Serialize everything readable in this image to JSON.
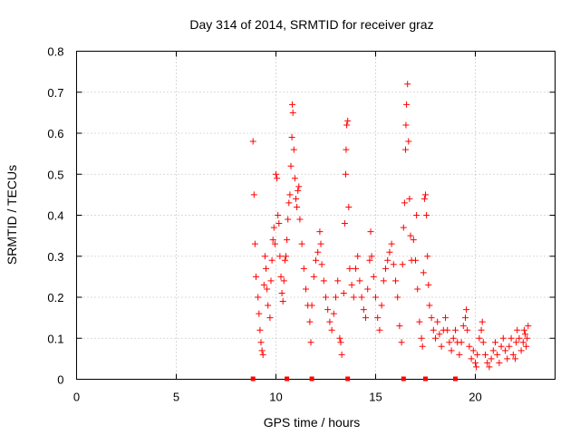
{
  "chart_data": {
    "type": "scatter",
    "title": "Day 314 of 2014, SRMTID for receiver graz",
    "xlabel": "GPS time / hours",
    "ylabel": "SRMTID / TECUs",
    "xlim": [
      0,
      24
    ],
    "ylim": [
      0,
      0.8
    ],
    "xticks": [
      0,
      5,
      10,
      15,
      20
    ],
    "yticks": [
      0,
      0.1,
      0.2,
      0.3,
      0.4,
      0.5,
      0.6,
      0.7,
      0.8
    ],
    "xtick_labels": [
      "0",
      "5",
      "10",
      "15",
      "20"
    ],
    "ytick_labels": [
      "0",
      "0.1",
      "0.2",
      "0.3",
      "0.4",
      "0.5",
      "0.6",
      "0.7",
      "0.8"
    ],
    "grid": true,
    "marker": "+",
    "color": "#ff0000",
    "series": [
      {
        "name": "SRMTID",
        "points": [
          [
            8.85,
            0.58
          ],
          [
            8.9,
            0.45
          ],
          [
            8.95,
            0.33
          ],
          [
            9.0,
            0.25
          ],
          [
            9.1,
            0.2
          ],
          [
            9.15,
            0.16
          ],
          [
            9.2,
            0.12
          ],
          [
            9.25,
            0.09
          ],
          [
            9.3,
            0.07
          ],
          [
            9.35,
            0.06
          ],
          [
            9.4,
            0.23
          ],
          [
            9.45,
            0.3
          ],
          [
            9.5,
            0.27
          ],
          [
            9.55,
            0.22
          ],
          [
            9.6,
            0.18
          ],
          [
            9.7,
            0.15
          ],
          [
            9.75,
            0.24
          ],
          [
            9.8,
            0.29
          ],
          [
            9.85,
            0.34
          ],
          [
            9.9,
            0.37
          ],
          [
            9.95,
            0.33
          ],
          [
            10.0,
            0.5
          ],
          [
            10.05,
            0.49
          ],
          [
            10.1,
            0.4
          ],
          [
            10.15,
            0.38
          ],
          [
            10.2,
            0.3
          ],
          [
            10.25,
            0.25
          ],
          [
            10.3,
            0.21
          ],
          [
            10.35,
            0.19
          ],
          [
            10.4,
            0.24
          ],
          [
            10.45,
            0.29
          ],
          [
            10.5,
            0.3
          ],
          [
            10.55,
            0.34
          ],
          [
            10.6,
            0.39
          ],
          [
            10.65,
            0.43
          ],
          [
            10.7,
            0.45
          ],
          [
            10.75,
            0.52
          ],
          [
            10.8,
            0.59
          ],
          [
            10.82,
            0.67
          ],
          [
            10.85,
            0.65
          ],
          [
            10.9,
            0.56
          ],
          [
            10.95,
            0.49
          ],
          [
            11.0,
            0.44
          ],
          [
            11.05,
            0.42
          ],
          [
            11.1,
            0.46
          ],
          [
            11.15,
            0.47
          ],
          [
            11.2,
            0.39
          ],
          [
            11.3,
            0.33
          ],
          [
            11.4,
            0.27
          ],
          [
            11.5,
            0.22
          ],
          [
            11.6,
            0.18
          ],
          [
            11.7,
            0.14
          ],
          [
            11.75,
            0.09
          ],
          [
            11.8,
            0.18
          ],
          [
            11.9,
            0.25
          ],
          [
            12.0,
            0.29
          ],
          [
            12.1,
            0.31
          ],
          [
            12.2,
            0.36
          ],
          [
            12.25,
            0.33
          ],
          [
            12.3,
            0.28
          ],
          [
            12.4,
            0.24
          ],
          [
            12.5,
            0.2
          ],
          [
            12.6,
            0.17
          ],
          [
            12.7,
            0.14
          ],
          [
            12.8,
            0.12
          ],
          [
            12.9,
            0.16
          ],
          [
            13.0,
            0.2
          ],
          [
            13.1,
            0.24
          ],
          [
            13.2,
            0.1
          ],
          [
            13.25,
            0.09
          ],
          [
            13.3,
            0.06
          ],
          [
            13.4,
            0.21
          ],
          [
            13.45,
            0.38
          ],
          [
            13.5,
            0.5
          ],
          [
            13.52,
            0.56
          ],
          [
            13.55,
            0.62
          ],
          [
            13.6,
            0.63
          ],
          [
            13.65,
            0.42
          ],
          [
            13.7,
            0.27
          ],
          [
            13.8,
            0.23
          ],
          [
            13.9,
            0.2
          ],
          [
            14.0,
            0.27
          ],
          [
            14.1,
            0.3
          ],
          [
            14.2,
            0.24
          ],
          [
            14.3,
            0.2
          ],
          [
            14.4,
            0.17
          ],
          [
            14.5,
            0.15
          ],
          [
            14.6,
            0.22
          ],
          [
            14.7,
            0.29
          ],
          [
            14.75,
            0.36
          ],
          [
            14.8,
            0.3
          ],
          [
            14.9,
            0.25
          ],
          [
            15.0,
            0.2
          ],
          [
            15.1,
            0.15
          ],
          [
            15.2,
            0.12
          ],
          [
            15.3,
            0.18
          ],
          [
            15.4,
            0.24
          ],
          [
            15.5,
            0.27
          ],
          [
            15.6,
            0.29
          ],
          [
            15.7,
            0.31
          ],
          [
            15.8,
            0.33
          ],
          [
            15.9,
            0.28
          ],
          [
            16.0,
            0.24
          ],
          [
            16.1,
            0.2
          ],
          [
            16.2,
            0.13
          ],
          [
            16.3,
            0.09
          ],
          [
            16.35,
            0.28
          ],
          [
            16.4,
            0.37
          ],
          [
            16.45,
            0.43
          ],
          [
            16.5,
            0.56
          ],
          [
            16.52,
            0.62
          ],
          [
            16.55,
            0.67
          ],
          [
            16.6,
            0.72
          ],
          [
            16.65,
            0.58
          ],
          [
            16.7,
            0.44
          ],
          [
            16.75,
            0.35
          ],
          [
            16.8,
            0.29
          ],
          [
            16.9,
            0.34
          ],
          [
            17.0,
            0.29
          ],
          [
            17.05,
            0.4
          ],
          [
            17.1,
            0.22
          ],
          [
            17.2,
            0.14
          ],
          [
            17.3,
            0.1
          ],
          [
            17.35,
            0.08
          ],
          [
            17.4,
            0.26
          ],
          [
            17.45,
            0.44
          ],
          [
            17.5,
            0.45
          ],
          [
            17.55,
            0.4
          ],
          [
            17.6,
            0.3
          ],
          [
            17.65,
            0.23
          ],
          [
            17.7,
            0.18
          ],
          [
            17.8,
            0.15
          ],
          [
            17.9,
            0.12
          ],
          [
            18.0,
            0.1
          ],
          [
            18.1,
            0.14
          ],
          [
            18.2,
            0.11
          ],
          [
            18.3,
            0.08
          ],
          [
            18.4,
            0.12
          ],
          [
            18.5,
            0.15
          ],
          [
            18.6,
            0.12
          ],
          [
            18.7,
            0.09
          ],
          [
            18.8,
            0.07
          ],
          [
            18.9,
            0.1
          ],
          [
            19.0,
            0.12
          ],
          [
            19.1,
            0.09
          ],
          [
            19.2,
            0.06
          ],
          [
            19.3,
            0.09
          ],
          [
            19.4,
            0.13
          ],
          [
            19.5,
            0.15
          ],
          [
            19.55,
            0.17
          ],
          [
            19.6,
            0.12
          ],
          [
            19.7,
            0.08
          ],
          [
            19.8,
            0.05
          ],
          [
            19.9,
            0.07
          ],
          [
            20.0,
            0.04
          ],
          [
            20.05,
            0.03
          ],
          [
            20.1,
            0.06
          ],
          [
            20.2,
            0.1
          ],
          [
            20.3,
            0.12
          ],
          [
            20.35,
            0.14
          ],
          [
            20.4,
            0.09
          ],
          [
            20.5,
            0.06
          ],
          [
            20.6,
            0.04
          ],
          [
            20.7,
            0.03
          ],
          [
            20.8,
            0.05
          ],
          [
            20.9,
            0.07
          ],
          [
            21.0,
            0.09
          ],
          [
            21.1,
            0.06
          ],
          [
            21.2,
            0.04
          ],
          [
            21.3,
            0.08
          ],
          [
            21.4,
            0.1
          ],
          [
            21.5,
            0.07
          ],
          [
            21.6,
            0.05
          ],
          [
            21.7,
            0.08
          ],
          [
            21.8,
            0.1
          ],
          [
            21.9,
            0.06
          ],
          [
            22.0,
            0.05
          ],
          [
            22.05,
            0.09
          ],
          [
            22.1,
            0.12
          ],
          [
            22.2,
            0.1
          ],
          [
            22.3,
            0.07
          ],
          [
            22.4,
            0.09
          ],
          [
            22.45,
            0.12
          ],
          [
            22.5,
            0.11
          ],
          [
            22.55,
            0.08
          ],
          [
            22.6,
            0.1
          ],
          [
            22.65,
            0.13
          ]
        ]
      }
    ],
    "zero_markers_x": [
      8.85,
      10.55,
      11.8,
      13.6,
      16.4,
      17.5,
      19.0
    ]
  }
}
